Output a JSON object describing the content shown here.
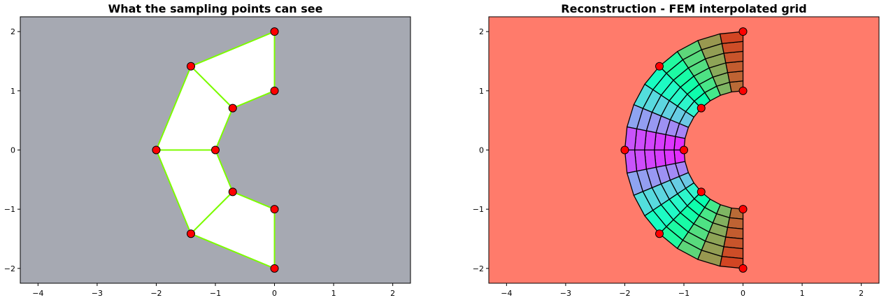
{
  "chart_data": [
    {
      "type": "polygon-mesh",
      "title": "What the sampling points can see",
      "background_color": "#a6a9b2",
      "fill_color": "#ffffff",
      "edge_color": "#7cfc00",
      "marker_color": "#ff0000",
      "xlim": [
        -4.3,
        2.3
      ],
      "ylim": [
        -2.25,
        2.25
      ],
      "xticks": [
        -4,
        -3,
        -2,
        -1,
        0,
        1,
        2
      ],
      "yticks": [
        -2,
        -1,
        0,
        1,
        2
      ],
      "xtick_labels": [
        "−4",
        "−3",
        "−2",
        "−1",
        "0",
        "1",
        "2"
      ],
      "ytick_labels": [
        "−2",
        "−1",
        "0",
        "1",
        "2"
      ],
      "points": [
        [
          0,
          2
        ],
        [
          0,
          1
        ],
        [
          -1.414,
          1.414
        ],
        [
          -0.707,
          0.707
        ],
        [
          -2,
          0
        ],
        [
          -1,
          0
        ],
        [
          -1.414,
          -1.414
        ],
        [
          -0.707,
          -0.707
        ],
        [
          0,
          -2
        ],
        [
          0,
          -1
        ]
      ],
      "quads": [
        [
          0,
          1,
          3,
          2
        ],
        [
          2,
          3,
          5,
          4
        ],
        [
          4,
          5,
          7,
          6
        ],
        [
          6,
          7,
          9,
          8
        ]
      ]
    },
    {
      "type": "fem-grid",
      "title": "Reconstruction - FEM interpolated grid",
      "background_color": "#ff7b6b",
      "edge_color": "#000000",
      "marker_color": "#ff0000",
      "colormap": "rainbow",
      "xlim": [
        -4.3,
        2.3
      ],
      "ylim": [
        -2.25,
        2.25
      ],
      "xticks": [
        -4,
        -3,
        -2,
        -1,
        0,
        1,
        2
      ],
      "yticks": [
        -2,
        -1,
        0,
        1,
        2
      ],
      "xtick_labels": [
        "−4",
        "−3",
        "−2",
        "−1",
        "0",
        "1",
        "2"
      ],
      "ytick_labels": [
        "−2",
        "−1",
        "0",
        "1",
        "2"
      ],
      "inner_radius": 1,
      "outer_radius": 2,
      "radial_cells": 6,
      "angular_cells": 16,
      "points": [
        [
          0,
          2
        ],
        [
          0,
          1
        ],
        [
          -1.414,
          1.414
        ],
        [
          -0.707,
          0.707
        ],
        [
          -2,
          0
        ],
        [
          -1,
          0
        ],
        [
          -1.414,
          -1.414
        ],
        [
          -0.707,
          -0.707
        ],
        [
          0,
          -2
        ],
        [
          0,
          -1
        ]
      ]
    }
  ]
}
